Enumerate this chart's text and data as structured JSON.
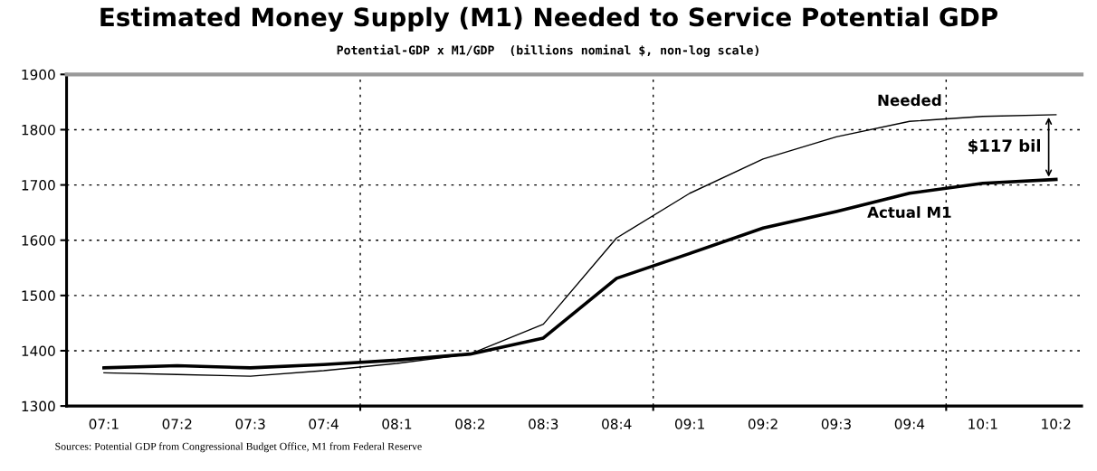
{
  "chart_data": {
    "type": "line",
    "title": "Estimated Money Supply (M1) Needed to Service Potential GDP",
    "subtitle": "Potential-GDP x M1/GDP  (billions nominal $, non-log scale)",
    "categories": [
      "07:1",
      "07:2",
      "07:3",
      "07:4",
      "08:1",
      "08:2",
      "08:3",
      "08:4",
      "09:1",
      "09:2",
      "09:3",
      "09:4",
      "10:1",
      "10:2"
    ],
    "ylim": [
      1300,
      1900
    ],
    "yticks": [
      1300,
      1400,
      1500,
      1600,
      1700,
      1800,
      1900
    ],
    "grid": true,
    "series": [
      {
        "name": "Needed",
        "color": "#000000",
        "values": [
          1360,
          1357,
          1354,
          1364,
          1377,
          1394,
          1448,
          1604,
          1685,
          1747,
          1787,
          1815,
          1824,
          1827
        ]
      },
      {
        "name": "Actual M1",
        "color": "#000000",
        "values": [
          1369,
          1373,
          1369,
          1375,
          1383,
          1394,
          1423,
          1531,
          1576,
          1622,
          1652,
          1685,
          1703,
          1710
        ]
      }
    ],
    "annotations": [
      "$117 bil",
      "Sources: Potential GDP from Congressional Budget Office, M1 from Federal Reserve"
    ],
    "line_style": "solid",
    "marker": "none"
  }
}
